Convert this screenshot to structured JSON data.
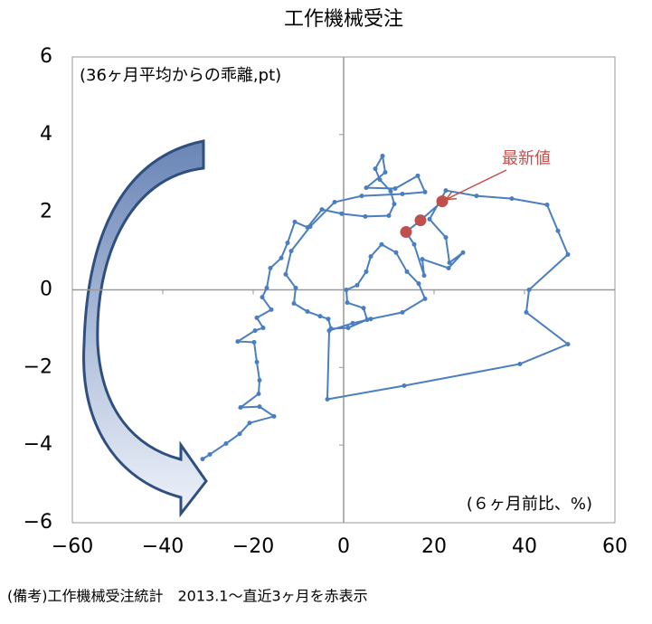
{
  "chart_data": {
    "type": "line",
    "title": "工作機械受注",
    "y_label": "(36ヶ月平均からの乖離,pt)",
    "x_label": "(６ヶ月前比、%)",
    "note": "(備考)工作機械受注統計　2013.1～直近3ヶ月を赤表示",
    "annotation": "最新値",
    "annotation_color": "#c0504d",
    "xlim": [
      -60,
      60
    ],
    "ylim": [
      -6,
      6
    ],
    "xticks": [
      {
        "value": -60,
        "label": "−60"
      },
      {
        "value": -40,
        "label": "−40"
      },
      {
        "value": -20,
        "label": "−20"
      },
      0,
      20,
      40,
      60
    ],
    "yticks": [
      {
        "value": -6,
        "label": "−6"
      },
      {
        "value": -4,
        "label": "−4"
      },
      {
        "value": -2,
        "label": "−2"
      },
      0,
      2,
      4,
      6
    ],
    "series": [
      {
        "color": "#4a7ebf",
        "x": [
          -31.2,
          -29.6,
          -26,
          -23,
          -20.8,
          -15.4,
          -18.6,
          -22.8,
          -18.8,
          -18.6,
          -19.2,
          -19.8,
          -23.4,
          -19.6,
          -17.8,
          -19.2,
          -16,
          -18,
          -17,
          -16.2,
          -13.8,
          -12.4,
          -10.8,
          -8,
          -4.8,
          -0.4,
          4.8,
          10,
          11.2,
          10.4,
          8,
          7,
          8.6,
          9.2,
          5,
          11.4,
          16.4,
          18,
          13,
          4,
          -2,
          -7.4,
          -11.6,
          -12.8,
          -10.6,
          -11,
          -8,
          -5.2,
          -3.4,
          -2.8,
          1,
          5.2,
          4.4,
          0.8,
          0.6,
          3,
          5,
          6,
          8.4,
          11.6,
          14,
          16.6,
          18,
          13,
          6,
          2,
          -3.2,
          -3.6,
          13.4,
          39,
          49.6,
          40.4,
          41,
          49.6,
          47.4,
          45,
          37.2,
          29.4,
          22.6,
          19,
          22.6,
          23.4,
          26.4,
          23.2,
          17.4,
          17.8,
          15.6
        ],
        "values": [
          -4.36,
          -4.24,
          -3.96,
          -3.71,
          -3.43,
          -3.26,
          -3.01,
          -3.03,
          -2.68,
          -2.33,
          -1.86,
          -1.35,
          -1.33,
          -1.05,
          -0.98,
          -0.72,
          -0.51,
          -0.19,
          0.05,
          0.56,
          0.82,
          1.21,
          1.75,
          1.61,
          2.07,
          1.96,
          1.89,
          1.91,
          2.21,
          2.54,
          2.84,
          3.12,
          3.45,
          3.03,
          2.63,
          2.61,
          2.94,
          2.52,
          2.47,
          2.42,
          2.26,
          1.63,
          1.0,
          0.4,
          0.05,
          -0.35,
          -0.56,
          -0.68,
          -0.75,
          -1.0,
          -0.98,
          -0.77,
          -0.47,
          -0.33,
          0,
          0.12,
          0.47,
          0.86,
          1.17,
          0.96,
          0.47,
          0.16,
          -0.23,
          -0.58,
          -0.75,
          -0.86,
          -1.05,
          -2.82,
          -2.47,
          -1.91,
          -1.4,
          -0.58,
          0,
          0.91,
          1.52,
          2.19,
          2.35,
          2.42,
          2.56,
          1.82,
          1.35,
          0.7,
          0.96,
          0.56,
          0.79,
          0.37,
          1.17
        ]
      },
      {
        "color": "#c0504d",
        "x": [
          13.8,
          17,
          21.8
        ],
        "values": [
          1.49,
          1.79,
          2.28
        ]
      }
    ]
  }
}
